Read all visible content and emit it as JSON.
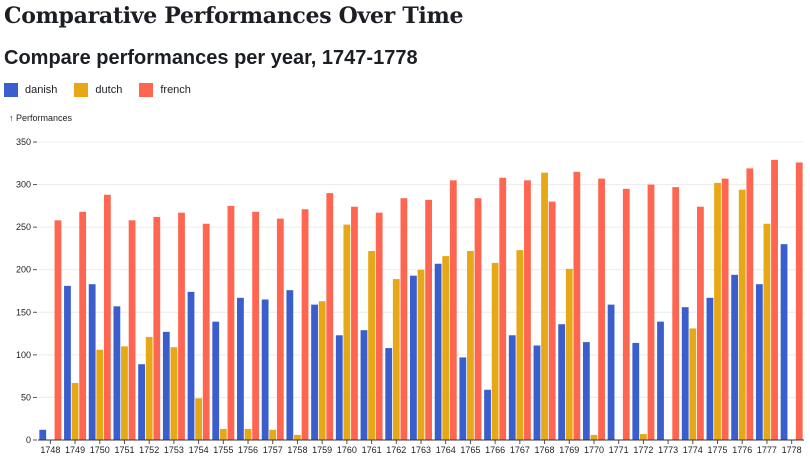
{
  "page": {
    "title": "Comparative Performances Over Time"
  },
  "chart_data": {
    "type": "bar",
    "title": "Compare performances per year, 1747-1778",
    "ylabel": "↑ Performances",
    "xlabel": "",
    "ylim": [
      0,
      350
    ],
    "yticks": [
      0,
      50,
      100,
      150,
      200,
      250,
      300,
      350
    ],
    "grid": true,
    "legend_position": "top-left",
    "categories": [
      "1748",
      "1749",
      "1750",
      "1751",
      "1752",
      "1753",
      "1754",
      "1755",
      "1756",
      "1757",
      "1758",
      "1759",
      "1760",
      "1761",
      "1762",
      "1763",
      "1764",
      "1765",
      "1766",
      "1767",
      "1768",
      "1769",
      "1770",
      "1771",
      "1772",
      "1773",
      "1774",
      "1775",
      "1776",
      "1777",
      "1778"
    ],
    "series": [
      {
        "name": "danish",
        "color": "#3a5fcd",
        "values": [
          12,
          181,
          183,
          157,
          89,
          127,
          174,
          139,
          167,
          165,
          176,
          159,
          123,
          129,
          108,
          193,
          207,
          97,
          59,
          123,
          111,
          136,
          115,
          159,
          114,
          139,
          156,
          167,
          194,
          183,
          230
        ]
      },
      {
        "name": "dutch",
        "color": "#e6a817",
        "values": [
          null,
          67,
          106,
          110,
          121,
          109,
          49,
          13,
          13,
          12,
          6,
          163,
          253,
          222,
          189,
          200,
          216,
          222,
          208,
          223,
          314,
          201,
          6,
          null,
          7,
          null,
          131,
          302,
          294,
          254,
          null
        ]
      },
      {
        "name": "french",
        "color": "#ff6651",
        "values": [
          258,
          268,
          288,
          258,
          262,
          267,
          254,
          275,
          268,
          260,
          271,
          290,
          274,
          267,
          284,
          282,
          305,
          284,
          308,
          305,
          280,
          315,
          307,
          295,
          300,
          297,
          274,
          307,
          319,
          329,
          326
        ]
      }
    ]
  }
}
